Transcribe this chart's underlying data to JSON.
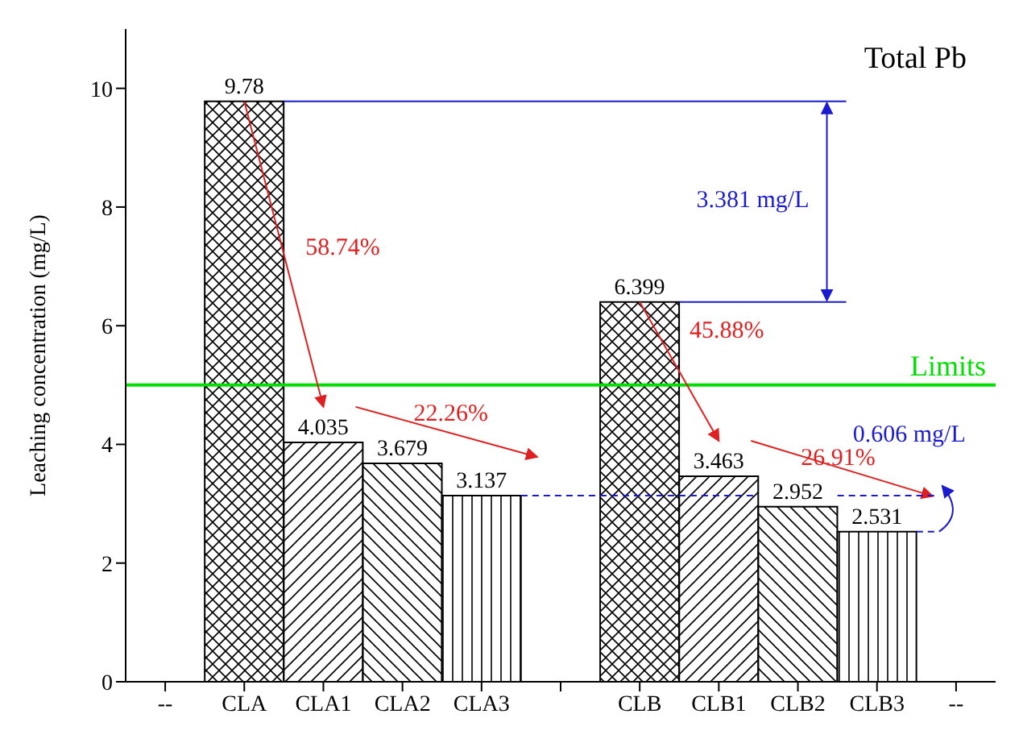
{
  "chart_data": {
    "type": "bar",
    "title": "Total Pb",
    "ylabel": "Leaching concentration  (mg/L)",
    "categories": [
      "--",
      "CLA",
      "CLA1",
      "CLA2",
      "CLA3",
      null,
      "CLB",
      "CLB1",
      "CLB2",
      "CLB3",
      "--"
    ],
    "values": [
      null,
      9.78,
      4.035,
      3.679,
      3.137,
      null,
      6.399,
      3.463,
      2.952,
      2.531,
      null
    ],
    "colors": [
      "#000000",
      "#000000",
      "#000000",
      "#000000",
      "#000000",
      "#000000",
      "#000000",
      "#000000",
      "#000000",
      "#000000",
      "#000000"
    ],
    "data_labels": true,
    "ylim": [
      0,
      11
    ],
    "yticks": [
      0,
      2,
      4,
      6,
      8,
      10
    ],
    "ref_lines": [
      {
        "axis": "y",
        "value": 5,
        "label": "Limits",
        "color": "#00dd00"
      }
    ],
    "annotations": [
      "58.74%",
      "22.26%",
      "45.88%",
      "26.91%",
      "3.381 mg/L",
      "0.606 mg/L"
    ],
    "relative": false
  }
}
